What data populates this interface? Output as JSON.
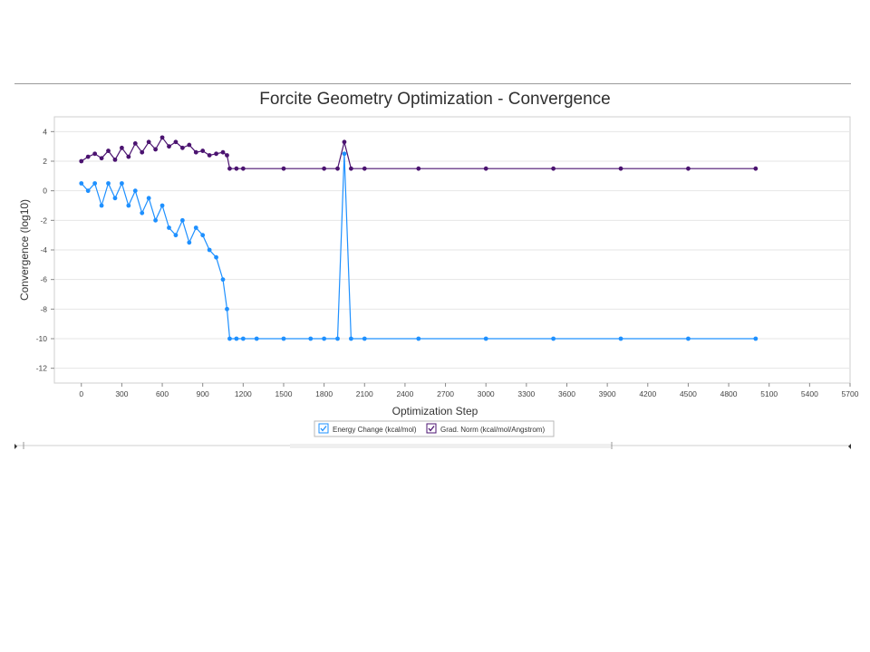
{
  "chart_data": {
    "type": "line",
    "title": "Forcite Geometry Optimization - Convergence",
    "xlabel": "Optimization Step",
    "ylabel": "Convergence (log10)",
    "xlim": [
      -200,
      5700
    ],
    "ylim": [
      -13,
      5
    ],
    "xticks": [
      0,
      300,
      600,
      900,
      1200,
      1500,
      1800,
      2100,
      2400,
      2700,
      3000,
      3300,
      3600,
      3900,
      4200,
      4500,
      4800,
      5100,
      5400,
      5700
    ],
    "yticks": [
      -12,
      -10,
      -8,
      -6,
      -4,
      -2,
      0,
      2,
      4
    ],
    "grid": true,
    "legend_position": "bottom-center",
    "series": [
      {
        "name": "Energy Change (kcal/mol)",
        "color": "#1E90FF",
        "x": [
          0,
          50,
          100,
          150,
          200,
          250,
          300,
          350,
          400,
          450,
          500,
          550,
          600,
          650,
          700,
          750,
          800,
          850,
          900,
          950,
          1000,
          1050,
          1080,
          1100,
          1150,
          1200,
          1300,
          1500,
          1700,
          1800,
          1900,
          1950,
          2000,
          2100,
          2500,
          3000,
          3500,
          4000,
          4500,
          5000
        ],
        "y": [
          0.5,
          0,
          0.5,
          -1,
          0.5,
          -0.5,
          0.5,
          -1,
          0,
          -1.5,
          -0.5,
          -2,
          -1,
          -2.5,
          -3,
          -2,
          -3.5,
          -2.5,
          -3,
          -4,
          -4.5,
          -6,
          -8,
          -10,
          -10,
          -10,
          -10,
          -10,
          -10,
          -10,
          -10,
          2.5,
          -10,
          -10,
          -10,
          -10,
          -10,
          -10,
          -10,
          -10
        ]
      },
      {
        "name": "Grad. Norm (kcal/mol/Angstrom)",
        "color": "#4B1370",
        "x": [
          0,
          50,
          100,
          150,
          200,
          250,
          300,
          350,
          400,
          450,
          500,
          550,
          600,
          650,
          700,
          750,
          800,
          850,
          900,
          950,
          1000,
          1050,
          1080,
          1100,
          1150,
          1200,
          1500,
          1800,
          1900,
          1950,
          2000,
          2100,
          2500,
          3000,
          3500,
          4000,
          4500,
          5000
        ],
        "y": [
          2,
          2.3,
          2.5,
          2.2,
          2.7,
          2.1,
          2.9,
          2.3,
          3.2,
          2.6,
          3.3,
          2.8,
          3.6,
          3,
          3.3,
          2.9,
          3.1,
          2.6,
          2.7,
          2.4,
          2.5,
          2.6,
          2.4,
          1.5,
          1.5,
          1.5,
          1.5,
          1.5,
          1.5,
          3.3,
          1.5,
          1.5,
          1.5,
          1.5,
          1.5,
          1.5,
          1.5,
          1.5
        ]
      }
    ]
  }
}
